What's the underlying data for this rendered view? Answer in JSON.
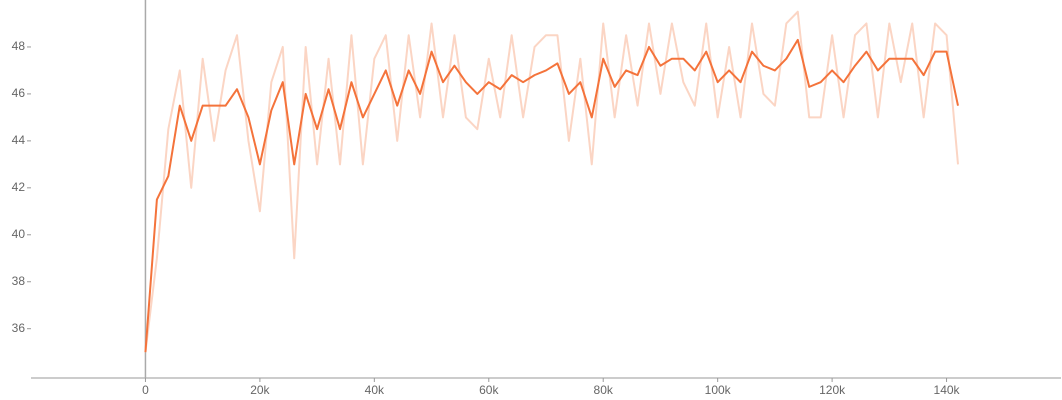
{
  "chart_data": {
    "type": "line",
    "x": [
      0,
      2000,
      4000,
      6000,
      8000,
      10000,
      12000,
      14000,
      16000,
      18000,
      20000,
      22000,
      24000,
      26000,
      28000,
      30000,
      32000,
      34000,
      36000,
      38000,
      40000,
      42000,
      44000,
      46000,
      48000,
      50000,
      52000,
      54000,
      56000,
      58000,
      60000,
      62000,
      64000,
      66000,
      68000,
      70000,
      72000,
      74000,
      76000,
      78000,
      80000,
      82000,
      84000,
      86000,
      88000,
      90000,
      92000,
      94000,
      96000,
      98000,
      100000,
      102000,
      104000,
      106000,
      108000,
      110000,
      112000,
      114000,
      116000,
      118000,
      120000,
      122000,
      124000,
      126000,
      128000,
      130000,
      132000,
      134000,
      136000,
      138000,
      140000,
      142000
    ],
    "series": [
      {
        "color": "#fbd5c4",
        "values": [
          35.0,
          39.0,
          44.5,
          47.0,
          42.0,
          47.5,
          44.0,
          47.0,
          48.5,
          44.0,
          41.0,
          46.5,
          48.0,
          39.0,
          48.0,
          43.0,
          47.5,
          43.0,
          48.5,
          43.0,
          47.5,
          48.5,
          44.0,
          48.5,
          45.0,
          49.0,
          45.0,
          48.5,
          45.0,
          44.5,
          47.5,
          45.0,
          48.5,
          45.0,
          48.0,
          48.5,
          48.5,
          44.0,
          47.5,
          43.0,
          49.0,
          45.0,
          48.5,
          45.5,
          49.0,
          46.0,
          49.0,
          46.5,
          45.5,
          49.0,
          45.0,
          48.0,
          45.0,
          49.0,
          46.0,
          45.5,
          49.0,
          49.5,
          45.0,
          45.0,
          48.5,
          45.0,
          48.5,
          49.0,
          45.0,
          49.0,
          46.5,
          49.0,
          45.0,
          49.0,
          48.5,
          43.0
        ]
      },
      {
        "color": "#f4733b",
        "values": [
          35.0,
          41.5,
          42.5,
          45.5,
          44.0,
          45.5,
          45.5,
          45.5,
          46.2,
          45.0,
          43.0,
          45.3,
          46.5,
          43.0,
          46.0,
          44.5,
          46.2,
          44.5,
          46.5,
          45.0,
          46.0,
          47.0,
          45.5,
          47.0,
          46.0,
          47.8,
          46.5,
          47.2,
          46.5,
          46.0,
          46.5,
          46.2,
          46.8,
          46.5,
          46.8,
          47.0,
          47.3,
          46.0,
          46.5,
          45.0,
          47.5,
          46.3,
          47.0,
          46.8,
          48.0,
          47.2,
          47.5,
          47.5,
          47.0,
          47.8,
          46.5,
          47.0,
          46.5,
          47.8,
          47.2,
          47.0,
          47.5,
          48.3,
          46.3,
          46.5,
          47.0,
          46.5,
          47.2,
          47.8,
          47.0,
          47.5,
          47.5,
          47.5,
          46.8,
          47.8,
          47.8,
          45.5
        ]
      }
    ],
    "xlim": [
      -20000,
      160000
    ],
    "xticks": [
      0,
      {
        "value": 20000,
        "label": "20k"
      },
      {
        "value": 40000,
        "label": "40k"
      },
      {
        "value": 60000,
        "label": "60k"
      },
      {
        "value": 80000,
        "label": "80k"
      },
      {
        "value": 100000,
        "label": "100k"
      },
      {
        "value": 120000,
        "label": "120k"
      },
      {
        "value": 140000,
        "label": "140k"
      }
    ],
    "ylim": [
      33.9,
      50
    ],
    "yticks": [
      36,
      38,
      40,
      42,
      44,
      46,
      48
    ]
  }
}
